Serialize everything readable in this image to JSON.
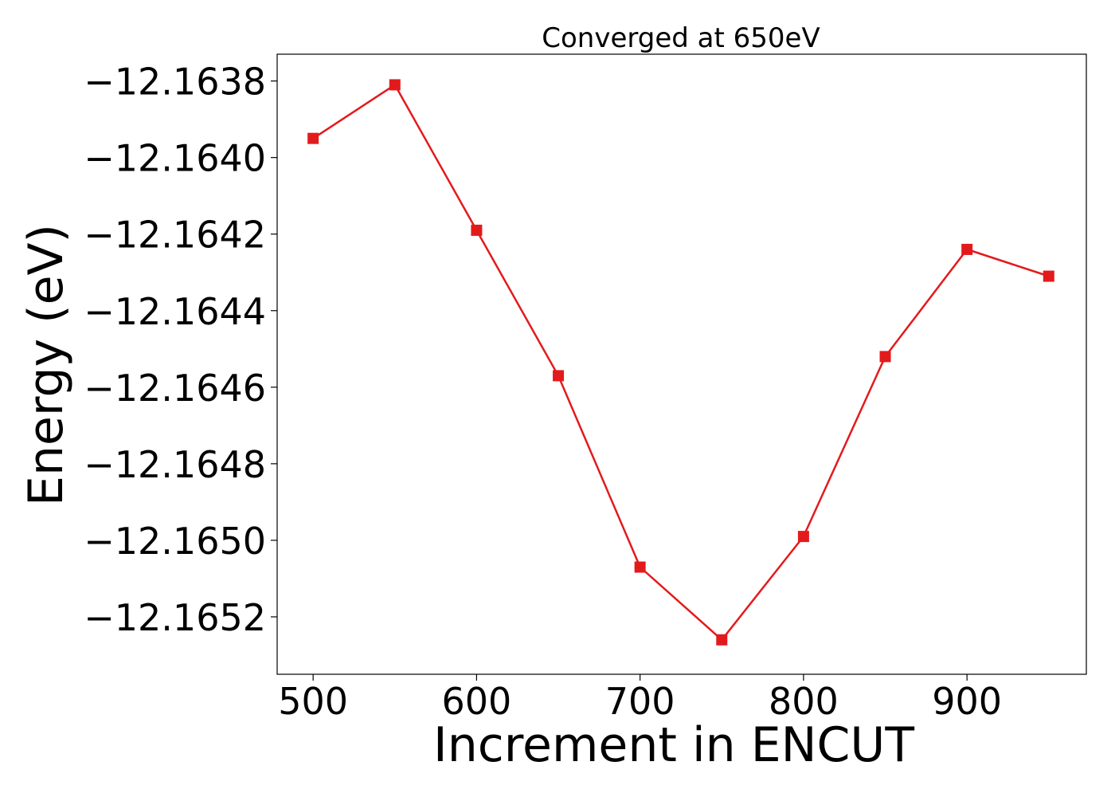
{
  "chart_data": {
    "type": "line",
    "title": "Converged at 650eV",
    "xlabel": "Increment in ENCUT",
    "ylabel": "Energy (eV)",
    "xlim": [
      478,
      973
    ],
    "ylim": [
      -12.16535,
      -12.16373
    ],
    "x_ticks": [
      500,
      600,
      700,
      800,
      900
    ],
    "x_tick_labels": [
      "500",
      "600",
      "700",
      "800",
      "900"
    ],
    "y_ticks": [
      -12.1638,
      -12.164,
      -12.1642,
      -12.1644,
      -12.1646,
      -12.1648,
      -12.165,
      -12.1652
    ],
    "y_tick_labels": [
      "−12.1638",
      "−12.1640",
      "−12.1642",
      "−12.1644",
      "−12.1646",
      "−12.1648",
      "−12.1650",
      "−12.1652"
    ],
    "grid": false,
    "marker": "square",
    "series": [
      {
        "color": "#e31a1c",
        "x": [
          500,
          550,
          600,
          650,
          700,
          750,
          800,
          850,
          900,
          950
        ],
        "values": [
          -12.16395,
          -12.16381,
          -12.16419,
          -12.16457,
          -12.16507,
          -12.16526,
          -12.16499,
          -12.16452,
          -12.16424,
          -12.16431
        ]
      }
    ]
  }
}
